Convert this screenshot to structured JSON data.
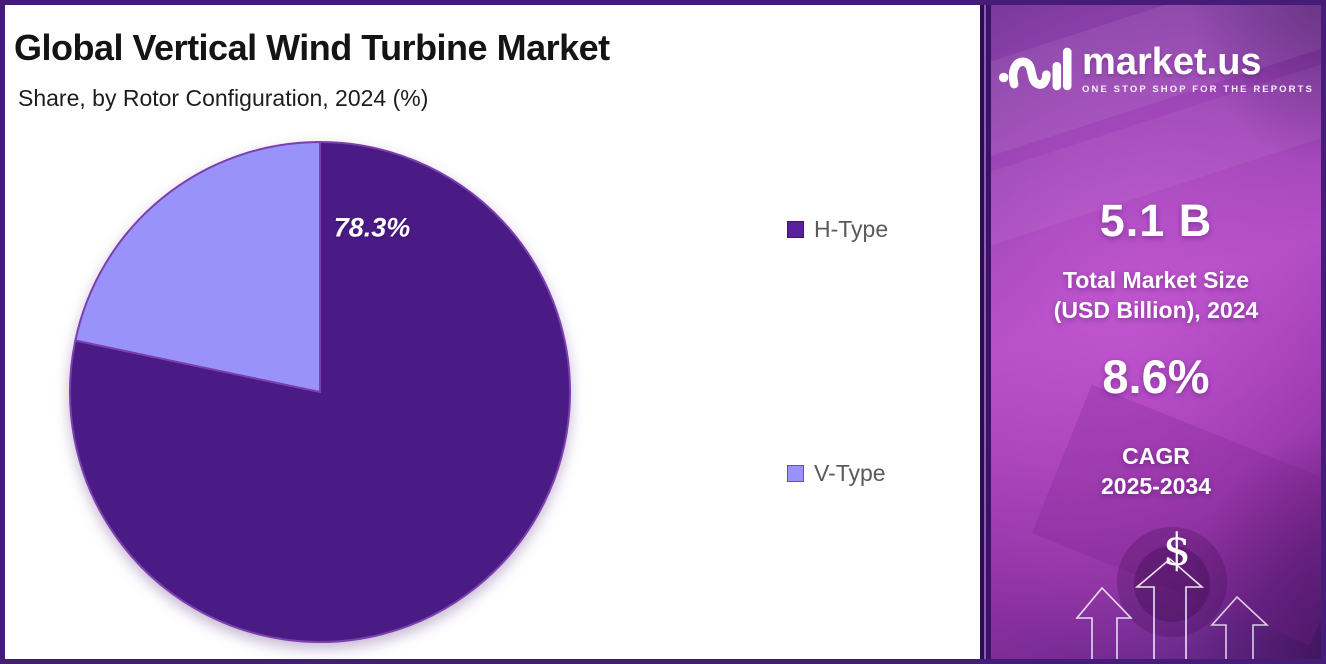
{
  "header": {
    "title": "Global Vertical Wind Turbine Market",
    "subtitle": "Share, by Rotor Configuration, 2024 (%)"
  },
  "chart_data": {
    "type": "pie",
    "title": "Global Vertical Wind Turbine Market",
    "subtitle": "Share, by Rotor Configuration, 2024 (%)",
    "categories": [
      "H-Type",
      "V-Type"
    ],
    "values": [
      78.3,
      21.7
    ],
    "colors": [
      "#4a1a85",
      "#9892fa"
    ],
    "slice_labels": [
      "78.3%",
      ""
    ],
    "start_angle": "12-oclock",
    "direction": "clockwise",
    "legend_position": "right",
    "stroke_color": "#7c3fae"
  },
  "legend": {
    "items": [
      {
        "label": "H-Type",
        "color": "#5a1f9c",
        "border": "#3f1570"
      },
      {
        "label": "V-Type",
        "color": "#9892fa",
        "border": "#6b46c8"
      }
    ]
  },
  "sidebar": {
    "brand": {
      "name": "market.us",
      "tagline": "ONE STOP SHOP FOR THE REPORTS",
      "logo_icon": "marketus-curl-and-bars-mark"
    },
    "market_size": {
      "value": "5.1 B",
      "label_line1": "Total Market Size",
      "label_line2": "(USD Billion), 2024"
    },
    "cagr": {
      "value": "8.6%",
      "label_line1": "CAGR",
      "label_line2": "2025-2034"
    },
    "dollar": "$",
    "accent_colors": {
      "panel_magenta": "#b14cc4",
      "panel_purple": "#7b3a9d",
      "frame_border": "#451c78"
    }
  }
}
